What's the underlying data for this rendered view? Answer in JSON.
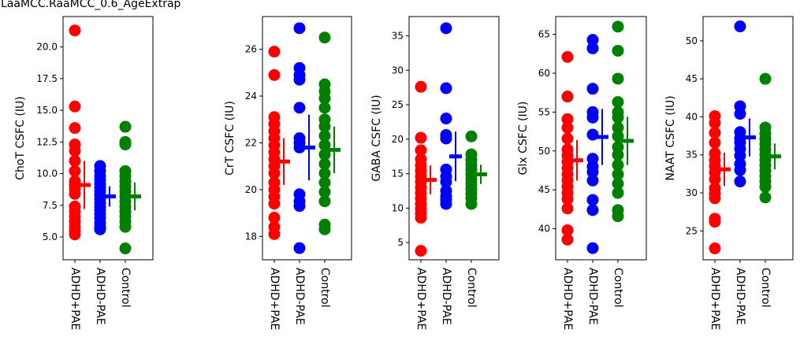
{
  "figure": {
    "title": "LaaMCC.RaaMCC_0.6_AgeExtrap"
  },
  "colors": {
    "ADHD+PAE": "#ff0000",
    "ADHD-PAE": "#0000ff",
    "Control": "#008000"
  },
  "chart_data": [
    {
      "type": "scatter",
      "ylabel": "ChoT CSFC (IU)",
      "categories": [
        "ADHD+PAE",
        "ADHD-PAE",
        "Control"
      ],
      "ylim": [
        3.2,
        22.4
      ],
      "yticks": [
        5.0,
        7.5,
        10.0,
        12.5,
        15.0,
        17.5,
        20.0
      ],
      "ytick_labels": [
        "5.0",
        "7.5",
        "10.0",
        "12.5",
        "15.0",
        "17.5",
        "20.0"
      ],
      "series": [
        {
          "name": "ADHD+PAE",
          "values": [
            21.3,
            15.3,
            13.6,
            12.3,
            11.8,
            11.0,
            10.2,
            9.4,
            9.1,
            8.8,
            8.4,
            7.4,
            7.0,
            6.6,
            6.2,
            5.8,
            5.5,
            5.2
          ],
          "mean": 9.1,
          "sd": 1.9
        },
        {
          "name": "ADHD-PAE",
          "values": [
            10.6,
            10.2,
            9.8,
            9.5,
            9.2,
            8.9,
            8.6,
            8.3,
            8.0,
            7.7,
            7.4,
            7.1,
            6.8,
            6.5,
            6.1,
            5.8,
            5.6
          ],
          "mean": 8.2,
          "sd": 0.8
        },
        {
          "name": "Control",
          "values": [
            13.7,
            12.5,
            12.3,
            10.2,
            9.8,
            9.4,
            9.0,
            8.6,
            8.2,
            7.8,
            7.4,
            7.0,
            6.6,
            6.2,
            5.8,
            4.1
          ],
          "mean": 8.2,
          "sd": 1.1
        }
      ]
    },
    {
      "type": "scatter",
      "ylabel": "CrT CSFC (IU)",
      "categories": [
        "ADHD+PAE",
        "ADHD-PAE",
        "Control"
      ],
      "ylim": [
        17.0,
        27.4
      ],
      "yticks": [
        18,
        20,
        22,
        24,
        26
      ],
      "ytick_labels": [
        "18",
        "20",
        "22",
        "24",
        "26"
      ],
      "series": [
        {
          "name": "ADHD+PAE",
          "values": [
            25.9,
            24.9,
            23.1,
            22.8,
            22.5,
            22.2,
            21.9,
            21.6,
            21.3,
            21.0,
            20.7,
            20.3,
            20.0,
            19.7,
            19.4,
            18.8,
            18.4,
            18.1
          ],
          "mean": 21.2,
          "sd": 1.0
        },
        {
          "name": "ADHD-PAE",
          "values": [
            26.9,
            25.2,
            24.9,
            24.7,
            23.5,
            22.2,
            22.0,
            21.8,
            19.8,
            19.5,
            19.3,
            17.5
          ],
          "mean": 21.8,
          "sd": 1.4
        },
        {
          "name": "Control",
          "values": [
            26.5,
            24.5,
            24.2,
            23.9,
            23.5,
            23.0,
            22.7,
            22.3,
            21.9,
            21.5,
            21.1,
            20.7,
            20.3,
            19.9,
            19.5,
            18.5,
            18.3
          ],
          "mean": 21.7,
          "sd": 1.0
        }
      ]
    },
    {
      "type": "scatter",
      "ylabel": "GABA CSFC (IU)",
      "categories": [
        "ADHD+PAE",
        "ADHD-PAE",
        "Control"
      ],
      "ylim": [
        2.5,
        37.8
      ],
      "yticks": [
        5,
        10,
        15,
        20,
        25,
        30,
        35
      ],
      "ytick_labels": [
        "5",
        "10",
        "15",
        "20",
        "25",
        "30",
        "35"
      ],
      "series": [
        {
          "name": "ADHD+PAE",
          "values": [
            27.6,
            20.2,
            18.4,
            17.1,
            16.2,
            15.4,
            14.6,
            13.8,
            13.0,
            12.2,
            11.4,
            10.6,
            9.9,
            9.2,
            8.6,
            3.8
          ],
          "mean": 14.1,
          "sd": 2.1
        },
        {
          "name": "ADHD-PAE",
          "values": [
            36.1,
            27.4,
            23.0,
            20.6,
            20.1,
            15.6,
            14.6,
            13.8,
            12.5,
            11.7,
            11.2,
            10.6
          ],
          "mean": 17.5,
          "sd": 3.6
        },
        {
          "name": "Control",
          "values": [
            20.4,
            17.8,
            17.0,
            16.3,
            15.6,
            14.9,
            14.2,
            13.5,
            12.8,
            12.1,
            11.4,
            10.6
          ],
          "mean": 14.9,
          "sd": 1.4
        }
      ]
    },
    {
      "type": "scatter",
      "ylabel": "Glx CSFC (IU)",
      "categories": [
        "ADHD+PAE",
        "ADHD-PAE",
        "Control"
      ],
      "ylim": [
        36.0,
        67.3
      ],
      "yticks": [
        40,
        45,
        50,
        55,
        60,
        65
      ],
      "ytick_labels": [
        "40",
        "45",
        "50",
        "55",
        "60",
        "65"
      ],
      "series": [
        {
          "name": "ADHD+PAE",
          "values": [
            62.1,
            57.0,
            54.1,
            53.0,
            51.6,
            50.2,
            49.4,
            48.6,
            47.8,
            47.0,
            46.2,
            45.4,
            44.6,
            43.8,
            42.6,
            39.8,
            38.6
          ],
          "mean": 48.8,
          "sd": 2.6
        },
        {
          "name": "ADHD-PAE",
          "values": [
            64.3,
            63.2,
            58.0,
            55.0,
            54.3,
            52.1,
            49.0,
            48.0,
            47.3,
            46.2,
            43.7,
            42.4,
            37.5
          ],
          "mean": 51.8,
          "sd": 3.6
        },
        {
          "name": "Control",
          "values": [
            66.0,
            62.9,
            59.3,
            56.3,
            55.0,
            54.3,
            53.0,
            51.9,
            50.5,
            49.5,
            48.2,
            47.0,
            45.8,
            44.6,
            42.4,
            41.6
          ],
          "mean": 51.3,
          "sd": 3.1
        }
      ]
    },
    {
      "type": "scatter",
      "ylabel": "NAAT CSFC (IU)",
      "categories": [
        "ADHD+PAE",
        "ADHD-PAE",
        "Control"
      ],
      "ylim": [
        21.2,
        53.2
      ],
      "yticks": [
        25,
        30,
        35,
        40,
        45,
        50
      ],
      "ytick_labels": [
        "25",
        "30",
        "35",
        "40",
        "45",
        "50"
      ],
      "series": [
        {
          "name": "ADHD+PAE",
          "values": [
            40.1,
            39.2,
            37.9,
            36.6,
            35.2,
            34.3,
            33.5,
            32.7,
            31.8,
            30.6,
            29.9,
            29.3,
            26.6,
            26.2,
            22.7
          ],
          "mean": 33.1,
          "sd": 2.2
        },
        {
          "name": "ADHD-PAE",
          "values": [
            51.9,
            41.4,
            40.4,
            38.0,
            37.2,
            36.6,
            35.8,
            34.9,
            33.8,
            33.0,
            31.5
          ],
          "mean": 37.3,
          "sd": 2.5
        },
        {
          "name": "Control",
          "values": [
            45.0,
            38.6,
            37.8,
            37.1,
            36.4,
            35.7,
            35.0,
            34.3,
            33.6,
            32.9,
            32.2,
            31.5,
            30.8,
            29.4
          ],
          "mean": 34.8,
          "sd": 1.7
        }
      ]
    }
  ]
}
